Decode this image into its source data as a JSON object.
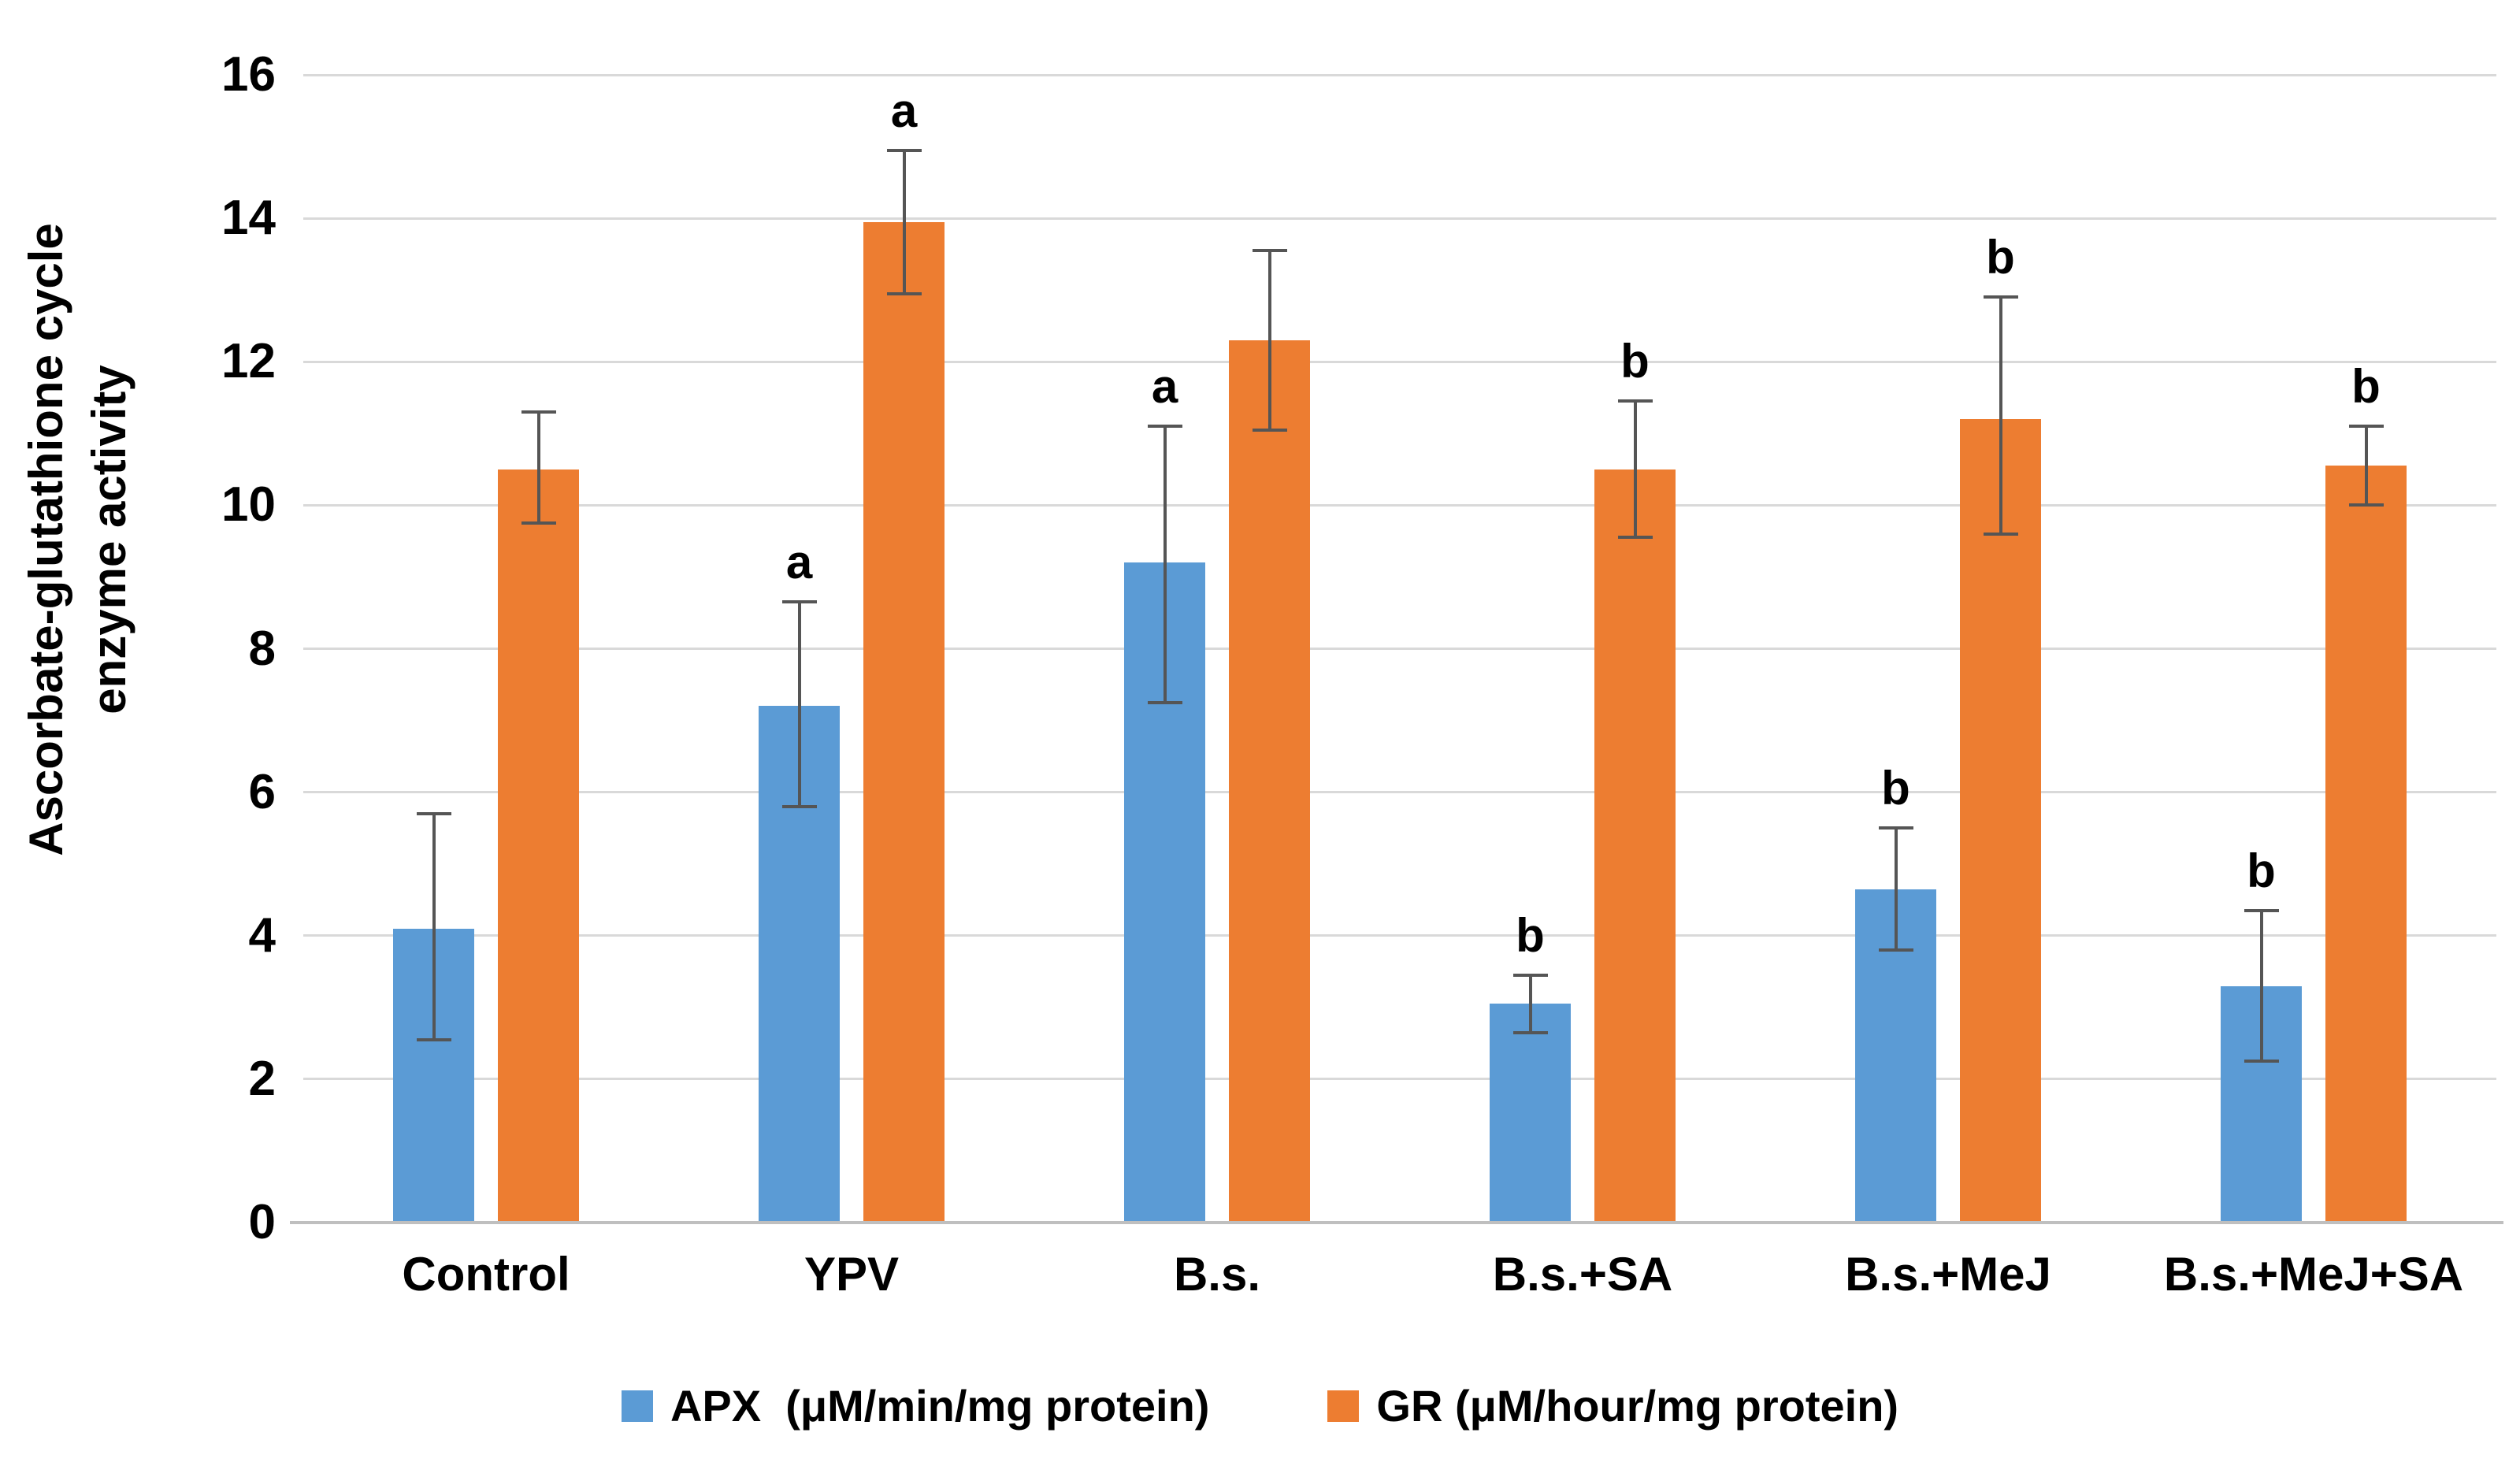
{
  "y_axis": {
    "title_line1": "Ascorbate-glutathione cycle",
    "title_line2": "enzyme activity",
    "min": 0,
    "max": 16,
    "tick_step": 2,
    "ticks": [
      "0",
      "2",
      "4",
      "6",
      "8",
      "10",
      "12",
      "14",
      "16"
    ]
  },
  "x_axis": {
    "categories": [
      "Control",
      "YPV",
      "B.s.",
      "B.s.+SA",
      "B.s.+MeJ",
      "B.s.+MeJ+SA"
    ]
  },
  "legend": {
    "items": [
      {
        "name": "apx",
        "label": "APX  (μM/min/mg protein)",
        "color": "#5B9BD5"
      },
      {
        "name": "gr",
        "label": "GR (μM/hour/mg protein)",
        "color": "#ED7D31"
      }
    ]
  },
  "colors": {
    "apx_bar": "#5B9BD5",
    "gr_bar": "#ED7D31",
    "error_bar": "#555555",
    "gridline": "#d9d9d9",
    "axis_line": "#bfbfbf",
    "text": "#000000"
  },
  "chart_data": {
    "type": "bar",
    "title": "",
    "xlabel": "",
    "ylabel": "Ascorbate-glutathione cycle enzyme activity",
    "ylim": [
      0,
      16
    ],
    "grid": true,
    "legend_position": "bottom",
    "categories": [
      "Control",
      "YPV",
      "B.s.",
      "B.s.+SA",
      "B.s.+MeJ",
      "B.s.+MeJ+SA"
    ],
    "series": [
      {
        "name": "APX  (μM/min/mg protein)",
        "color": "#5B9BD5",
        "values": [
          4.1,
          7.2,
          9.2,
          3.05,
          4.65,
          3.3
        ],
        "error_up": [
          1.6,
          1.45,
          1.9,
          0.4,
          0.85,
          1.05
        ],
        "error_down": [
          1.55,
          1.4,
          1.95,
          0.4,
          0.85,
          1.05
        ],
        "letters": [
          "",
          "a",
          "a",
          "b",
          "b",
          "b"
        ]
      },
      {
        "name": "GR (μM/hour/mg protein)",
        "color": "#ED7D31",
        "values": [
          10.5,
          13.95,
          12.3,
          10.5,
          11.2,
          10.55
        ],
        "error_up": [
          0.8,
          1.0,
          1.25,
          0.95,
          1.7,
          0.55
        ],
        "error_down": [
          0.75,
          1.0,
          1.25,
          0.95,
          1.6,
          0.55
        ],
        "letters": [
          "",
          "a",
          "",
          "b",
          "b",
          "b"
        ]
      }
    ]
  }
}
